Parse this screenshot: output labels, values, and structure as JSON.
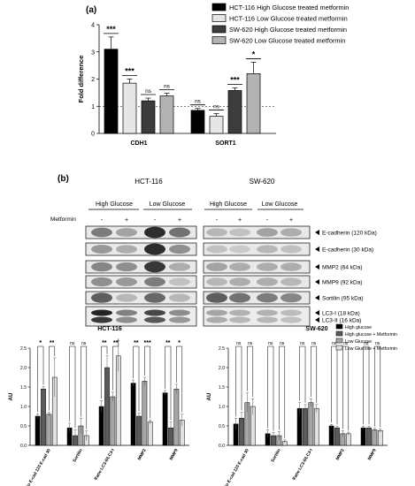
{
  "panel_a": {
    "label": "(a)",
    "chart_data": {
      "type": "bar",
      "categories": [
        "CDH1",
        "SORT1"
      ],
      "series": [
        {
          "name": "HCT-116 High Glucose treated metformin",
          "color": "#000000",
          "values": [
            3.1,
            0.85
          ],
          "errors": [
            0.45,
            0.07
          ]
        },
        {
          "name": "HCT-116 Low Glucose treated metformin",
          "color": "#e6e6e6",
          "values": [
            1.85,
            0.63
          ],
          "errors": [
            0.15,
            0.1
          ]
        },
        {
          "name": "SW-620 High Glucose treated metformin",
          "color": "#3c3c3c",
          "values": [
            1.2,
            1.58
          ],
          "errors": [
            0.1,
            0.1
          ]
        },
        {
          "name": "SW-620 Low Glucose treated metformin",
          "color": "#b3b3b3",
          "values": [
            1.38,
            2.2
          ],
          "errors": [
            0.1,
            0.42
          ]
        }
      ],
      "significance": [
        [
          "***",
          "***",
          "ns",
          "ns"
        ],
        [
          "ns",
          "ns",
          "***",
          "*"
        ]
      ],
      "ylabel": "Fold difference",
      "ylim": [
        0,
        4
      ],
      "yticks": [
        0,
        1,
        2,
        3,
        4
      ],
      "reference_line": 1,
      "legend_position": "top-right"
    }
  },
  "panel_b": {
    "label": "(b)",
    "cell_lines": [
      "HCT-116",
      "SW-620"
    ],
    "conditions": [
      "High Glucose",
      "Low Glucose"
    ],
    "treatment_label": "Metformin",
    "lanes": [
      "-",
      "+",
      "-",
      "+"
    ],
    "bands": [
      "E-cadherin (120 kDa)",
      "E-cadherin (30 kDa)",
      "MMP2 (64 kDa)",
      "MMP9 (92 kDa)",
      "Sortilin (95 kDa)"
    ],
    "lc3_bands": [
      "LC3-I (18 kDa)",
      "LC3-II (16 kDa)"
    ]
  },
  "bottom_charts": [
    {
      "title": "HCT-116",
      "chart_data": {
        "type": "bar",
        "ylabel": "AU",
        "ylim": [
          0,
          2.5
        ],
        "yticks": [
          0.0,
          0.5,
          1.0,
          1.5,
          2.0,
          2.5
        ],
        "categories": [
          "Ratio E-cad 120 E-cad 30",
          "Sortilin",
          "Ratio LC3-II/LC3-I",
          "MMP2",
          "MMP9"
        ],
        "series_colors": [
          "#000000",
          "#5a5a5a",
          "#a6a6a6",
          "#e0e0e0"
        ],
        "values": [
          [
            0.75,
            1.45,
            0.8,
            1.75
          ],
          [
            0.45,
            0.25,
            0.5,
            0.25
          ],
          [
            1.0,
            2.0,
            1.25,
            2.3
          ],
          [
            1.6,
            0.75,
            1.65,
            0.6
          ],
          [
            1.35,
            0.45,
            1.45,
            0.65
          ]
        ],
        "errors": [
          [
            0.06,
            0.06,
            0.05,
            0.5
          ],
          [
            0.12,
            0.15,
            0.2,
            0.12
          ],
          [
            0.15,
            0.3,
            0.12,
            0.4
          ],
          [
            0.08,
            0.08,
            0.1,
            0.05
          ],
          [
            0.06,
            0.15,
            0.12,
            0.15
          ]
        ],
        "significance": [
          [
            "*",
            "**"
          ],
          [
            "ns",
            "ns"
          ],
          [
            "**",
            "**"
          ],
          [
            "**",
            "***"
          ],
          [
            "**",
            "*"
          ]
        ]
      }
    },
    {
      "title": "SW-620",
      "chart_data": {
        "type": "bar",
        "ylabel": "AU",
        "ylim": [
          0,
          2.5
        ],
        "yticks": [
          0.0,
          0.5,
          1.0,
          1.5,
          2.0,
          2.5
        ],
        "categories": [
          "Ratio E-cad 120 E-cad 30",
          "Sortilin",
          "Ratio LC3-II/LC3-I",
          "MMP2",
          "MMP9"
        ],
        "series_colors": [
          "#000000",
          "#5a5a5a",
          "#a6a6a6",
          "#e0e0e0"
        ],
        "legend": [
          "High glucose",
          "High glucose + Metformin",
          "Low Glucose",
          "Low Glucose + Metformin"
        ],
        "values": [
          [
            0.55,
            0.7,
            1.1,
            1.0
          ],
          [
            0.3,
            0.25,
            0.25,
            0.1
          ],
          [
            0.95,
            0.95,
            1.1,
            0.95
          ],
          [
            0.5,
            0.45,
            0.3,
            0.3
          ],
          [
            0.45,
            0.45,
            0.4,
            0.38
          ]
        ],
        "errors": [
          [
            0.15,
            0.15,
            0.25,
            0.2
          ],
          [
            0.1,
            0.08,
            0.1,
            0.04
          ],
          [
            0.15,
            0.1,
            0.1,
            0.1
          ],
          [
            0.04,
            0.04,
            0.08,
            0.04
          ],
          [
            0.04,
            0.04,
            0.04,
            0.04
          ]
        ],
        "significance": [
          [
            "ns",
            "ns"
          ],
          [
            "ns",
            "ns"
          ],
          [
            "ns",
            "ns"
          ],
          [
            "ns",
            "ns"
          ],
          [
            "ns",
            "ns"
          ]
        ]
      }
    }
  ]
}
